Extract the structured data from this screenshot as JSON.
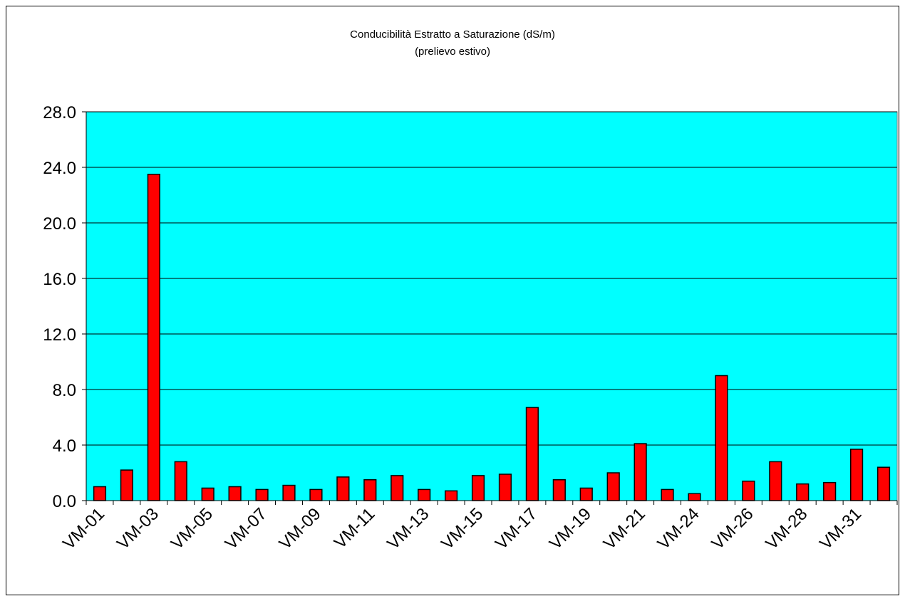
{
  "chart_data": {
    "type": "bar",
    "title": "Conducibilità Estratto a Saturazione  (dS/m)",
    "subtitle": "(prelievo estivo)",
    "categories": [
      "VM-01",
      null,
      "VM-03",
      null,
      "VM-05",
      null,
      "VM-07",
      null,
      "VM-09",
      null,
      "VM-11",
      null,
      "VM-13",
      null,
      "VM-15",
      null,
      "VM-17",
      null,
      "VM-19",
      null,
      "VM-21",
      null,
      "VM-24",
      null,
      "VM-26",
      null,
      "VM-28",
      null,
      "VM-31",
      null
    ],
    "values": [
      1.0,
      2.2,
      23.5,
      2.8,
      0.9,
      1.0,
      0.8,
      1.1,
      0.8,
      1.7,
      1.5,
      1.8,
      0.8,
      0.7,
      1.8,
      1.9,
      6.7,
      1.5,
      0.9,
      2.0,
      4.1,
      0.8,
      0.5,
      9.0,
      1.4,
      2.8,
      1.2,
      1.3,
      3.7,
      2.4
    ],
    "color": "#ff0000",
    "background": "#00ffff",
    "ylim": [
      0,
      28
    ],
    "yticks": [
      {
        "value": 0,
        "label": "0.0"
      },
      {
        "value": 4,
        "label": "4.0"
      },
      {
        "value": 8,
        "label": "8.0"
      },
      {
        "value": 12,
        "label": "12.0"
      },
      {
        "value": 16,
        "label": "16.0"
      },
      {
        "value": 20,
        "label": "20.0"
      },
      {
        "value": 24,
        "label": "24.0"
      },
      {
        "value": 28,
        "label": "28.0"
      }
    ],
    "grid": true
  }
}
